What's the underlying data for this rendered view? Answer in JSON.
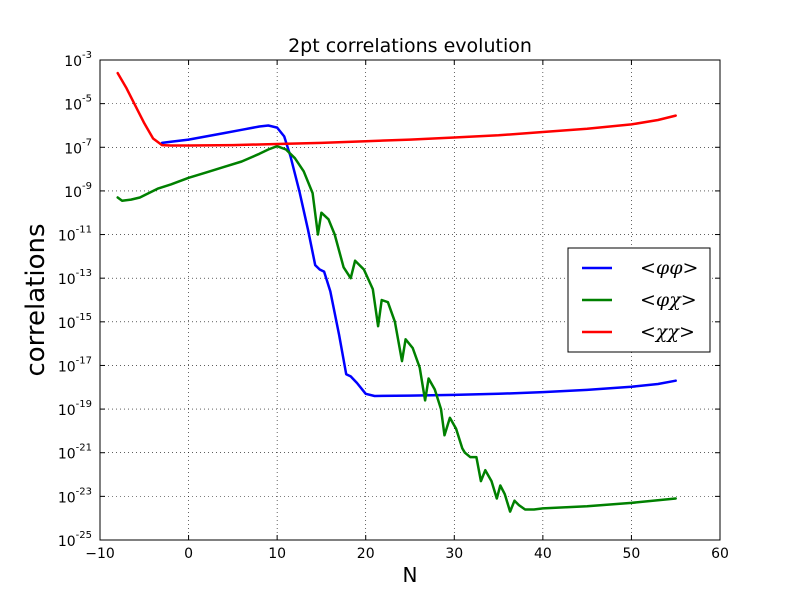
{
  "chart_data": {
    "type": "line",
    "title": "2pt correlations evolution",
    "xlabel": "N",
    "ylabel": "correlations",
    "xlim": [
      -10,
      60
    ],
    "ylim_log10": [
      -25,
      -3
    ],
    "yscale": "log",
    "grid": true,
    "grid_style": "dotted",
    "legend_position": "right",
    "x_ticks": [
      -10,
      0,
      10,
      20,
      30,
      40,
      50,
      60
    ],
    "x_tick_labels": [
      "−10",
      "0",
      "10",
      "20",
      "30",
      "40",
      "50",
      "60"
    ],
    "y_tick_exponents": [
      -25,
      -23,
      -21,
      -19,
      -17,
      -15,
      -13,
      -11,
      -9,
      -7,
      -5,
      -3
    ],
    "y_tick_labels": [
      {
        "base": "10",
        "exp": "-25"
      },
      {
        "base": "10",
        "exp": "-23"
      },
      {
        "base": "10",
        "exp": "-21"
      },
      {
        "base": "10",
        "exp": "-19"
      },
      {
        "base": "10",
        "exp": "-17"
      },
      {
        "base": "10",
        "exp": "-15"
      },
      {
        "base": "10",
        "exp": "-13"
      },
      {
        "base": "10",
        "exp": "-11"
      },
      {
        "base": "10",
        "exp": "-9"
      },
      {
        "base": "10",
        "exp": "-7"
      },
      {
        "base": "10",
        "exp": "-5"
      },
      {
        "base": "10",
        "exp": "-3"
      }
    ],
    "series": [
      {
        "name": "<φφ>",
        "color": "#0000ff",
        "x": [
          -3,
          -2,
          0,
          2,
          4,
          6,
          8,
          9,
          10,
          10.8,
          11.5,
          12.5,
          13.5,
          14.3,
          14.8,
          15.3,
          16,
          17,
          17.8,
          18.3,
          19,
          20,
          21,
          25,
          30,
          35,
          40,
          45,
          50,
          53,
          55
        ],
        "log10_y": [
          -6.8,
          -6.75,
          -6.65,
          -6.5,
          -6.35,
          -6.2,
          -6.05,
          -6.0,
          -6.1,
          -6.5,
          -7.4,
          -9.0,
          -10.8,
          -12.4,
          -12.6,
          -12.7,
          -13.6,
          -15.6,
          -17.4,
          -17.5,
          -17.8,
          -18.3,
          -18.4,
          -18.38,
          -18.35,
          -18.3,
          -18.22,
          -18.12,
          -17.98,
          -17.85,
          -17.7
        ]
      },
      {
        "name": "<φχ>",
        "color": "#008000",
        "x": [
          -8,
          -7.5,
          -6.5,
          -5.5,
          -4.5,
          -3.5,
          -2,
          0,
          2,
          4,
          6,
          8,
          9,
          10,
          11,
          12,
          13,
          14,
          14.6,
          15,
          15.8,
          16.5,
          17.5,
          18.3,
          18.8,
          19.8,
          20.8,
          21.4,
          21.8,
          22.5,
          23.3,
          24.1,
          24.5,
          25.3,
          26.1,
          26.7,
          27.1,
          27.8,
          28.5,
          28.9,
          29.5,
          30.2,
          30.9,
          31.2,
          31.8,
          32.5,
          33.0,
          33.5,
          34.2,
          34.8,
          35.2,
          35.7,
          36.3,
          36.8,
          37.3,
          38,
          39,
          40,
          45,
          50,
          55
        ],
        "log10_y": [
          -9.3,
          -9.45,
          -9.4,
          -9.3,
          -9.1,
          -8.9,
          -8.7,
          -8.4,
          -8.15,
          -7.9,
          -7.65,
          -7.3,
          -7.1,
          -6.95,
          -7.1,
          -7.5,
          -8.1,
          -9.1,
          -11.0,
          -10.0,
          -10.3,
          -11.0,
          -12.5,
          -13.0,
          -12.2,
          -12.6,
          -13.5,
          -15.2,
          -14.0,
          -14.1,
          -15.0,
          -16.8,
          -15.8,
          -16.2,
          -17.1,
          -18.6,
          -17.6,
          -18.1,
          -19.0,
          -20.2,
          -19.4,
          -19.9,
          -20.8,
          -21.0,
          -21.2,
          -21.2,
          -22.3,
          -21.8,
          -22.3,
          -23.1,
          -22.5,
          -22.9,
          -23.7,
          -23.2,
          -23.4,
          -23.6,
          -23.6,
          -23.55,
          -23.45,
          -23.3,
          -23.1
        ]
      },
      {
        "name": "<χχ>",
        "color": "#ff0000",
        "x": [
          -8,
          -7,
          -6,
          -5,
          -4,
          -3,
          -2,
          0,
          5,
          10,
          15,
          20,
          25,
          30,
          35,
          40,
          45,
          50,
          53,
          55
        ],
        "log10_y": [
          -3.6,
          -4.3,
          -5.1,
          -5.9,
          -6.6,
          -6.9,
          -6.92,
          -6.92,
          -6.9,
          -6.85,
          -6.8,
          -6.72,
          -6.65,
          -6.55,
          -6.45,
          -6.3,
          -6.15,
          -5.95,
          -5.75,
          -5.55
        ]
      }
    ]
  }
}
